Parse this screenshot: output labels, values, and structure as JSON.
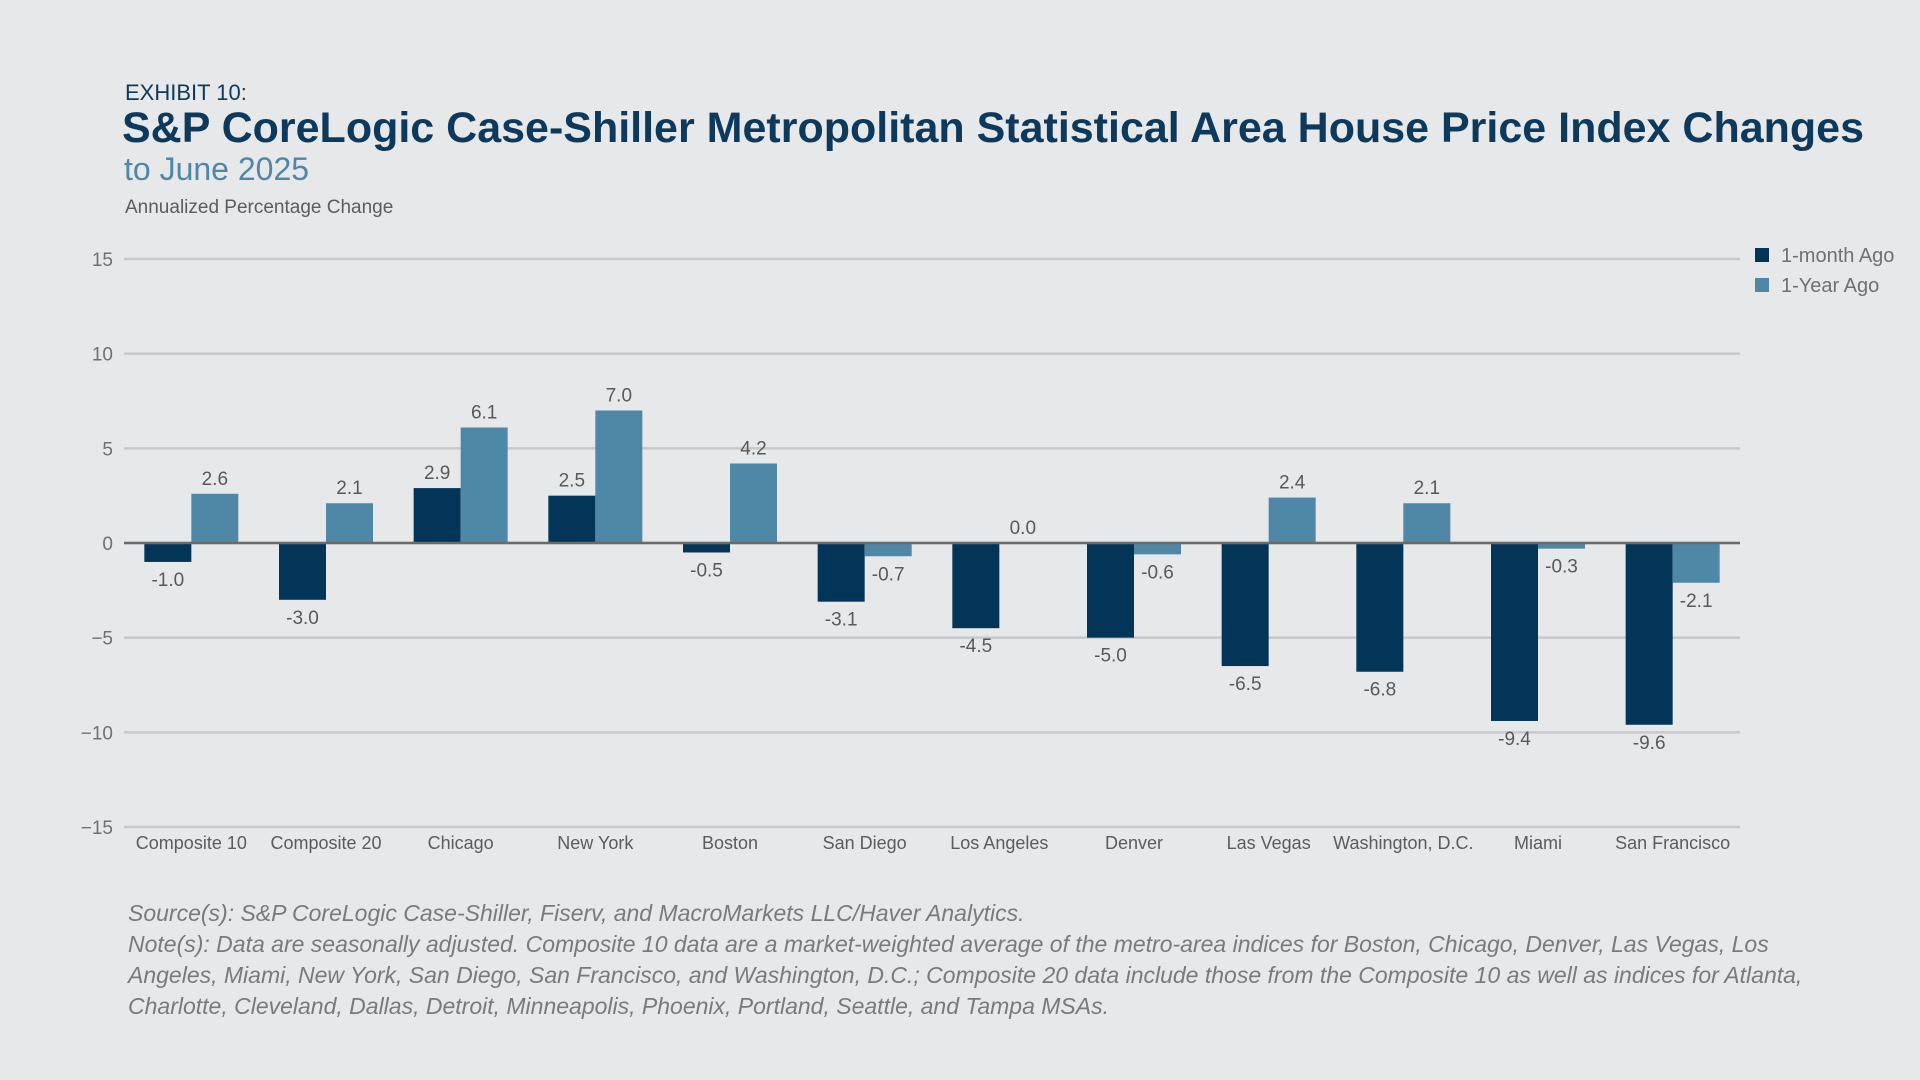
{
  "header": {
    "exhibit": "EXHIBIT 10:",
    "title": "S&P CoreLogic Case-Shiller Metropolitan Statistical Area House Price Index Changes",
    "subtitle": "to June 2025",
    "axis_label": "Annualized Percentage Change"
  },
  "chart_data": {
    "type": "bar",
    "title": "S&P CoreLogic Case-Shiller Metropolitan Statistical Area House Price Index Changes",
    "subtitle": "to June 2025",
    "xlabel": "",
    "ylabel": "Annualized Percentage Change",
    "ylim": [
      -15,
      15
    ],
    "yticks": [
      {
        "value": 15,
        "label": "15"
      },
      {
        "value": 10,
        "label": "10"
      },
      {
        "value": 5,
        "label": "5"
      },
      {
        "value": 0,
        "label": "0"
      },
      {
        "value": -5,
        "label": "−5"
      },
      {
        "value": -10,
        "label": "−10"
      },
      {
        "value": -15,
        "label": "−15"
      }
    ],
    "grid": true,
    "legend_position": "top-right",
    "categories": [
      "Composite 10",
      "Composite 20",
      "Chicago",
      "New York",
      "Boston",
      "San Diego",
      "Los Angeles",
      "Denver",
      "Las Vegas",
      "Washington, D.C.",
      "Miami",
      "San Francisco"
    ],
    "series": [
      {
        "name": "1-month Ago",
        "color": "#023557",
        "values": [
          -1.0,
          -3.0,
          2.9,
          2.5,
          -0.5,
          -3.1,
          -4.5,
          -5.0,
          -6.5,
          -6.8,
          -9.4,
          -9.6
        ],
        "labels": [
          "-1.0",
          "-3.0",
          "2.9",
          "2.5",
          "-0.5",
          "-3.1",
          "-4.5",
          "-5.0",
          "-6.5",
          "-6.8",
          "-9.4",
          "-9.6"
        ]
      },
      {
        "name": "1-Year Ago",
        "color": "#4e88a6",
        "values": [
          2.6,
          2.1,
          6.1,
          7.0,
          4.2,
          -0.7,
          0.0,
          -0.6,
          2.4,
          2.1,
          -0.3,
          -2.1
        ],
        "labels": [
          "2.6",
          "2.1",
          "6.1",
          "7.0",
          "4.2",
          "-0.7",
          "0.0",
          "-0.6",
          "2.4",
          "2.1",
          "-0.3",
          "-2.1"
        ]
      }
    ]
  },
  "notes": {
    "source": "Source(s): S&P CoreLogic Case-Shiller, Fiserv, and MacroMarkets LLC/Haver Analytics.",
    "note": "Note(s): Data are seasonally adjusted. Composite 10 data are a market-weighted average of the metro-area indices for Boston, Chicago, Denver, Las Vegas, Los Angeles, Miami, New York, San Diego, San Francisco, and Washington, D.C.; Composite 20 data include those from the Composite 10 as well as indices for Atlanta, Charlotte, Cleveland, Dallas, Detroit, Minneapolis, Phoenix, Portland, Seattle, and Tampa MSAs."
  }
}
